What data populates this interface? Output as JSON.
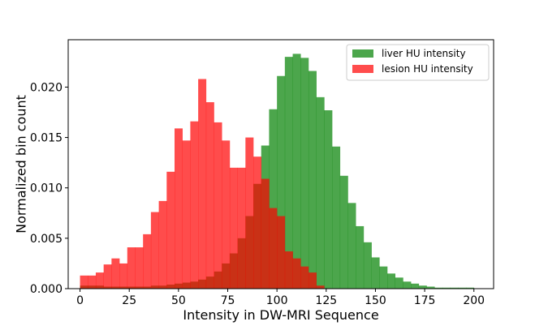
{
  "chart_data": {
    "type": "histogram",
    "xlabel": "Intensity in DW-MRI Sequence",
    "ylabel": "Normalized bin count",
    "xlim": [
      -6,
      210
    ],
    "ylim": [
      0,
      0.0247
    ],
    "xticks": [
      0,
      25,
      50,
      75,
      100,
      125,
      150,
      175,
      200
    ],
    "yticks": [
      0.0,
      0.005,
      0.01,
      0.015,
      0.02
    ],
    "ytick_labels": [
      "0.000",
      "0.005",
      "0.010",
      "0.015",
      "0.020"
    ],
    "grid": false,
    "legend_position": "top-right",
    "bin_width": 4,
    "bin_starts": [
      0,
      4,
      8,
      12,
      16,
      20,
      24,
      28,
      32,
      36,
      40,
      44,
      48,
      52,
      56,
      60,
      64,
      68,
      72,
      76,
      80,
      84,
      88,
      92,
      96,
      100,
      104,
      108,
      112,
      116,
      120,
      124,
      128,
      132,
      136,
      140,
      144,
      148,
      152,
      156,
      160,
      164,
      168,
      172,
      176,
      180,
      184,
      188,
      192,
      196
    ],
    "series": [
      {
        "name": "liver HU intensity",
        "color": "#008000",
        "opacity": 0.7,
        "values": [
          0.0003,
          0.0003,
          0.0003,
          0.0002,
          0.0002,
          0.0002,
          0.0002,
          0.0002,
          0.0002,
          0.0003,
          0.0003,
          0.0004,
          0.0005,
          0.0006,
          0.0007,
          0.0009,
          0.0012,
          0.0017,
          0.0025,
          0.0035,
          0.005,
          0.0072,
          0.0104,
          0.0142,
          0.0178,
          0.0211,
          0.023,
          0.0233,
          0.0229,
          0.0216,
          0.019,
          0.0177,
          0.0141,
          0.0112,
          0.0085,
          0.0062,
          0.0046,
          0.0031,
          0.0022,
          0.0015,
          0.0011,
          0.0007,
          0.0005,
          0.0003,
          0.0002,
          0.0001,
          0.0001,
          0.0001,
          0.0001,
          0.0001
        ]
      },
      {
        "name": "lesion HU intensity",
        "color": "#ff0000",
        "opacity": 0.7,
        "values": [
          0.0013,
          0.0013,
          0.0016,
          0.0024,
          0.003,
          0.0025,
          0.0041,
          0.0041,
          0.0054,
          0.0076,
          0.0087,
          0.0116,
          0.0159,
          0.0147,
          0.0166,
          0.0208,
          0.0185,
          0.0165,
          0.0147,
          0.012,
          0.012,
          0.015,
          0.0131,
          0.0109,
          0.008,
          0.0072,
          0.0037,
          0.003,
          0.0022,
          0.0016,
          0.0003,
          0,
          0,
          0,
          0,
          0,
          0,
          0,
          0,
          0,
          0,
          0,
          0,
          0,
          0,
          0,
          0,
          0,
          0,
          0
        ]
      }
    ]
  }
}
